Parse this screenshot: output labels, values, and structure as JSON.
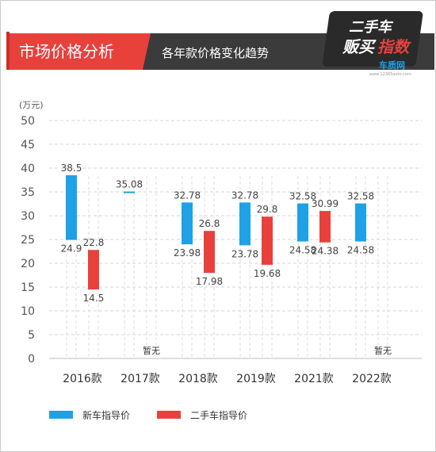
{
  "header": {
    "title": "市场价格分析",
    "subtitle": "各年款价格变化趋势",
    "logo_line1": "二手车",
    "logo_line2a": "贩买",
    "logo_line2b": "指数",
    "logo_brand": "车质网",
    "logo_url": "www.12365auto.com"
  },
  "colors": {
    "new_car": "#1ea1e6",
    "used_car": "#e8413c",
    "title_bg": "#e8413c",
    "subtitle_bg": "#3b3b3b"
  },
  "chart_data": {
    "type": "bar",
    "ylabel": "(万元)",
    "ylim": [
      0,
      50
    ],
    "yticks": [
      0,
      5,
      10,
      15,
      20,
      25,
      30,
      35,
      40,
      45,
      50
    ],
    "grid": true,
    "legend_position": "bottom-left",
    "categories": [
      "2016款",
      "2017款",
      "2018款",
      "2019款",
      "2021款",
      "2022款"
    ],
    "series": [
      {
        "name": "新车指导价",
        "low": [
          24.9,
          null,
          23.98,
          23.78,
          24.58,
          24.58
        ],
        "high": [
          38.5,
          35.08,
          32.78,
          32.78,
          32.58,
          32.58
        ],
        "low_labels": [
          "24.9",
          "",
          "23.98",
          "23.78",
          "24.58",
          "24.58"
        ],
        "high_labels": [
          "38.5",
          "35.08",
          "32.78",
          "32.78",
          "32.58",
          "32.58"
        ]
      },
      {
        "name": "二手车指导价",
        "low": [
          14.5,
          null,
          17.98,
          19.68,
          24.38,
          null
        ],
        "high": [
          22.8,
          null,
          26.8,
          29.8,
          30.99,
          null
        ],
        "low_labels": [
          "14.5",
          "",
          "17.98",
          "19.68",
          "24.38",
          ""
        ],
        "high_labels": [
          "22.8",
          "",
          "26.8",
          "29.8",
          "30.99",
          ""
        ]
      }
    ],
    "no_data_label": "暂无",
    "no_data_categories": [
      "2017款",
      "2022款"
    ]
  }
}
